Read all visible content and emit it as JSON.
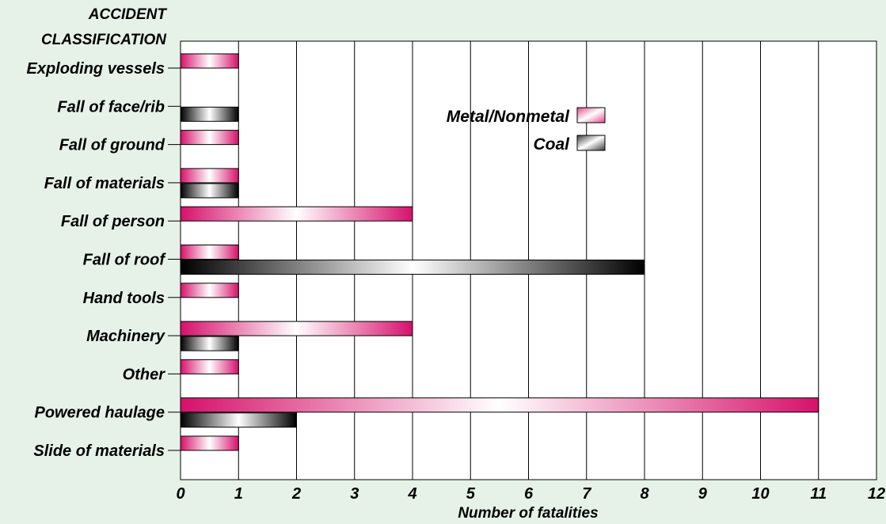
{
  "chart_data": {
    "type": "bar",
    "orientation": "horizontal",
    "y_axis_title": [
      "ACCIDENT",
      "CLASSIFICATION"
    ],
    "xlabel": "Number of fatalities",
    "xlim": [
      0,
      12
    ],
    "x_ticks": [
      0,
      1,
      2,
      3,
      4,
      5,
      6,
      7,
      8,
      9,
      10,
      11,
      12
    ],
    "grid": "vertical",
    "legend_position": "upper-right",
    "categories": [
      "Exploding vessels",
      "Fall of face/rib",
      "Fall of ground",
      "Fall of materials",
      "Fall of person",
      "Fall of roof",
      "Hand tools",
      "Machinery",
      "Other",
      "Powered haulage",
      "Slide of materials"
    ],
    "series": [
      {
        "name": "Metal/Nonmetal",
        "color": "#d6116b",
        "values": [
          1,
          0,
          1,
          1,
          4,
          1,
          1,
          4,
          1,
          11,
          1
        ]
      },
      {
        "name": "Coal",
        "color": "#000000",
        "values": [
          0,
          1,
          0,
          1,
          0,
          8,
          0,
          1,
          0,
          2,
          0
        ]
      }
    ]
  },
  "colors": {
    "background": "#e6f2e7",
    "plot": "#ffffff",
    "metal": "#d6116b",
    "coal": "#000000"
  }
}
